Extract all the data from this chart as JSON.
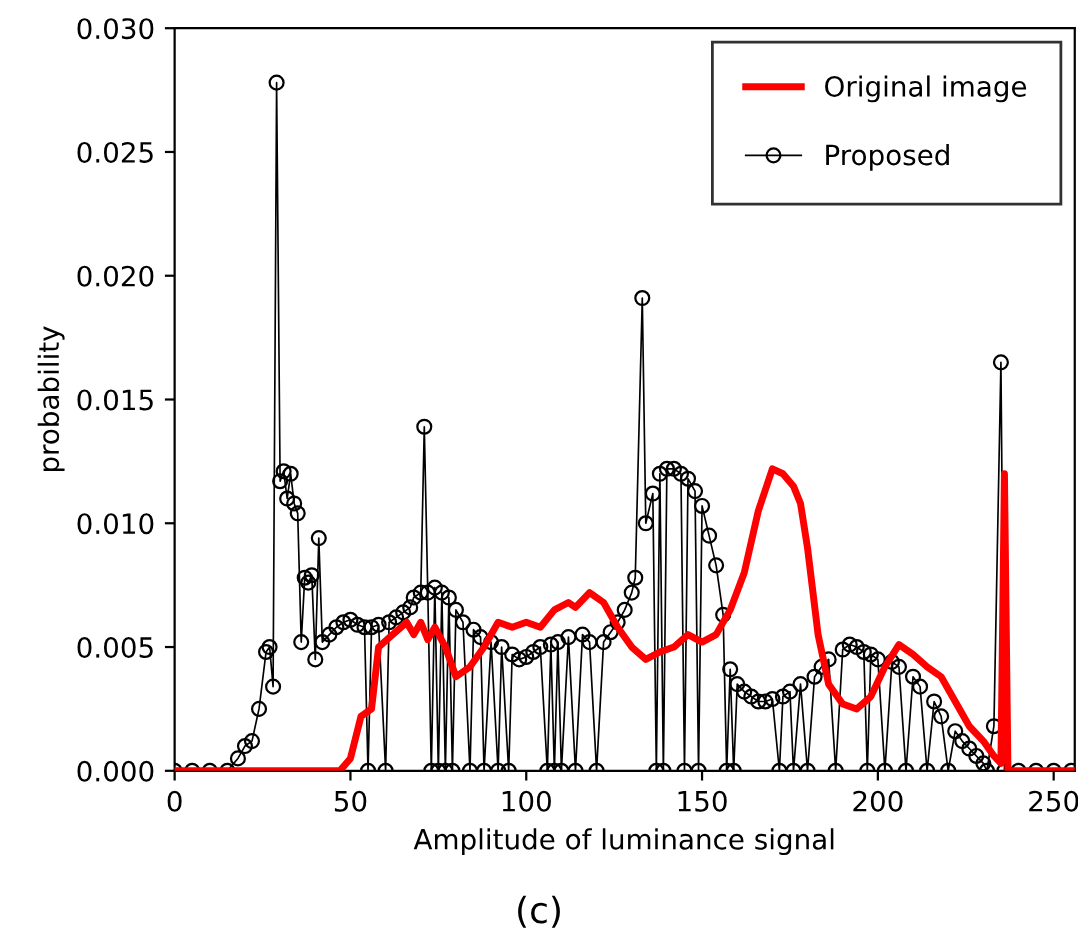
{
  "chart_data": {
    "type": "line",
    "xlabel": "Amplitude of luminance signal",
    "ylabel": "probability",
    "annotations": [
      "(c)"
    ],
    "xlim": [
      0,
      256
    ],
    "xticks": [
      0,
      50,
      100,
      150,
      200,
      250
    ],
    "ylim": [
      0,
      0.03
    ],
    "yticks": [
      {
        "value": 0,
        "label": "0.000"
      },
      {
        "value": 0.005,
        "label": "0.005"
      },
      {
        "value": 0.01,
        "label": "0.010"
      },
      {
        "value": 0.015,
        "label": "0.015"
      },
      {
        "value": 0.02,
        "label": "0.020"
      },
      {
        "value": 0.025,
        "label": "0.025"
      },
      {
        "value": 0.03,
        "label": "0.030"
      }
    ],
    "grid": false,
    "legend": "top right",
    "series": [
      {
        "name": "Original image",
        "color": "#ff0000",
        "marker": "none",
        "x": [
          0,
          47,
          50,
          53,
          56,
          58,
          62,
          66,
          68,
          70,
          72,
          74,
          77,
          80,
          84,
          88,
          92,
          96,
          100,
          104,
          108,
          112,
          114,
          118,
          122,
          126,
          130,
          134,
          138,
          142,
          146,
          150,
          154,
          158,
          162,
          166,
          170,
          173,
          176,
          178,
          180,
          183,
          186,
          190,
          194,
          198,
          202,
          206,
          210,
          214,
          218,
          222,
          226,
          230,
          233,
          235,
          236,
          237,
          256
        ],
        "values": [
          0,
          0,
          0.0005,
          0.0022,
          0.0025,
          0.005,
          0.0055,
          0.006,
          0.0055,
          0.006,
          0.0053,
          0.0058,
          0.005,
          0.0038,
          0.0042,
          0.005,
          0.006,
          0.0058,
          0.006,
          0.0058,
          0.0065,
          0.0068,
          0.0066,
          0.0072,
          0.0068,
          0.0058,
          0.005,
          0.0045,
          0.0048,
          0.005,
          0.0055,
          0.0052,
          0.0055,
          0.0065,
          0.008,
          0.0105,
          0.0122,
          0.012,
          0.0115,
          0.0108,
          0.009,
          0.0055,
          0.0035,
          0.0027,
          0.0025,
          0.003,
          0.0042,
          0.0051,
          0.0047,
          0.0042,
          0.0038,
          0.0028,
          0.0018,
          0.0012,
          0.0006,
          0.0003,
          0.012,
          0,
          0
        ]
      },
      {
        "name": "Proposed",
        "color": "#000000",
        "marker": "circle",
        "x": [
          0,
          5,
          10,
          15,
          18,
          20,
          22,
          24,
          26,
          27,
          28,
          29,
          30,
          31,
          32,
          33,
          34,
          35,
          36,
          37,
          38,
          39,
          40,
          41,
          42,
          44,
          46,
          48,
          50,
          52,
          54,
          55,
          56,
          58,
          60,
          61,
          63,
          65,
          67,
          68,
          70,
          71,
          72,
          73,
          74,
          75,
          76,
          77,
          78,
          79,
          80,
          82,
          84,
          85,
          87,
          88,
          90,
          92,
          93,
          95,
          96,
          98,
          100,
          102,
          104,
          106,
          107,
          108,
          109,
          110,
          112,
          114,
          116,
          118,
          120,
          122,
          124,
          126,
          128,
          130,
          131,
          133,
          134,
          136,
          137,
          138,
          139,
          140,
          142,
          144,
          145,
          146,
          148,
          149,
          150,
          152,
          154,
          156,
          157,
          158,
          159,
          160,
          162,
          164,
          166,
          168,
          170,
          172,
          173,
          175,
          176,
          178,
          180,
          182,
          184,
          186,
          188,
          190,
          192,
          194,
          196,
          197,
          198,
          200,
          202,
          204,
          206,
          208,
          210,
          212,
          214,
          216,
          218,
          220,
          222,
          224,
          226,
          228,
          230,
          231,
          233,
          235,
          236,
          240,
          245,
          250,
          255
        ],
        "values": [
          0,
          0,
          0,
          0,
          0.0005,
          0.001,
          0.0012,
          0.0025,
          0.0048,
          0.005,
          0.0034,
          0.0278,
          0.0117,
          0.0121,
          0.011,
          0.012,
          0.0108,
          0.0104,
          0.0052,
          0.0078,
          0.0076,
          0.0079,
          0.0045,
          0.0094,
          0.0052,
          0.0055,
          0.0058,
          0.006,
          0.0061,
          0.0059,
          0.0058,
          0,
          0.0058,
          0.0059,
          0,
          0.006,
          0.0062,
          0.0064,
          0.0066,
          0.007,
          0.0072,
          0.0139,
          0.0072,
          0,
          0.0074,
          0,
          0.0072,
          0,
          0.007,
          0,
          0.0065,
          0.006,
          0,
          0.0057,
          0.0054,
          0,
          0.0052,
          0,
          0.005,
          0,
          0.0047,
          0.0045,
          0.0046,
          0.0048,
          0.005,
          0,
          0.0051,
          0,
          0.0052,
          0,
          0.0054,
          0,
          0.0055,
          0.0052,
          0,
          0.0052,
          0.0056,
          0.006,
          0.0065,
          0.0072,
          0.0078,
          0.0191,
          0.01,
          0.0112,
          0,
          0.012,
          0,
          0.0122,
          0.0122,
          0.012,
          0,
          0.0118,
          0.0113,
          0,
          0.0107,
          0.0095,
          0.0083,
          0.0063,
          0,
          0.0041,
          0,
          0.0035,
          0.0032,
          0.003,
          0.0028,
          0.0028,
          0.0029,
          0,
          0.003,
          0.0032,
          0,
          0.0035,
          0,
          0.0038,
          0.0042,
          0.0045,
          0,
          0.0049,
          0.0051,
          0.005,
          0.0048,
          0,
          0.0047,
          0.0045,
          0,
          0.0044,
          0.0042,
          0,
          0.0038,
          0.0034,
          0,
          0.0028,
          0.0022,
          0,
          0.0016,
          0.0012,
          0.0009,
          0.0006,
          0.0003,
          0,
          0.0018,
          0.0165,
          0,
          0,
          0,
          0,
          0
        ]
      }
    ]
  }
}
